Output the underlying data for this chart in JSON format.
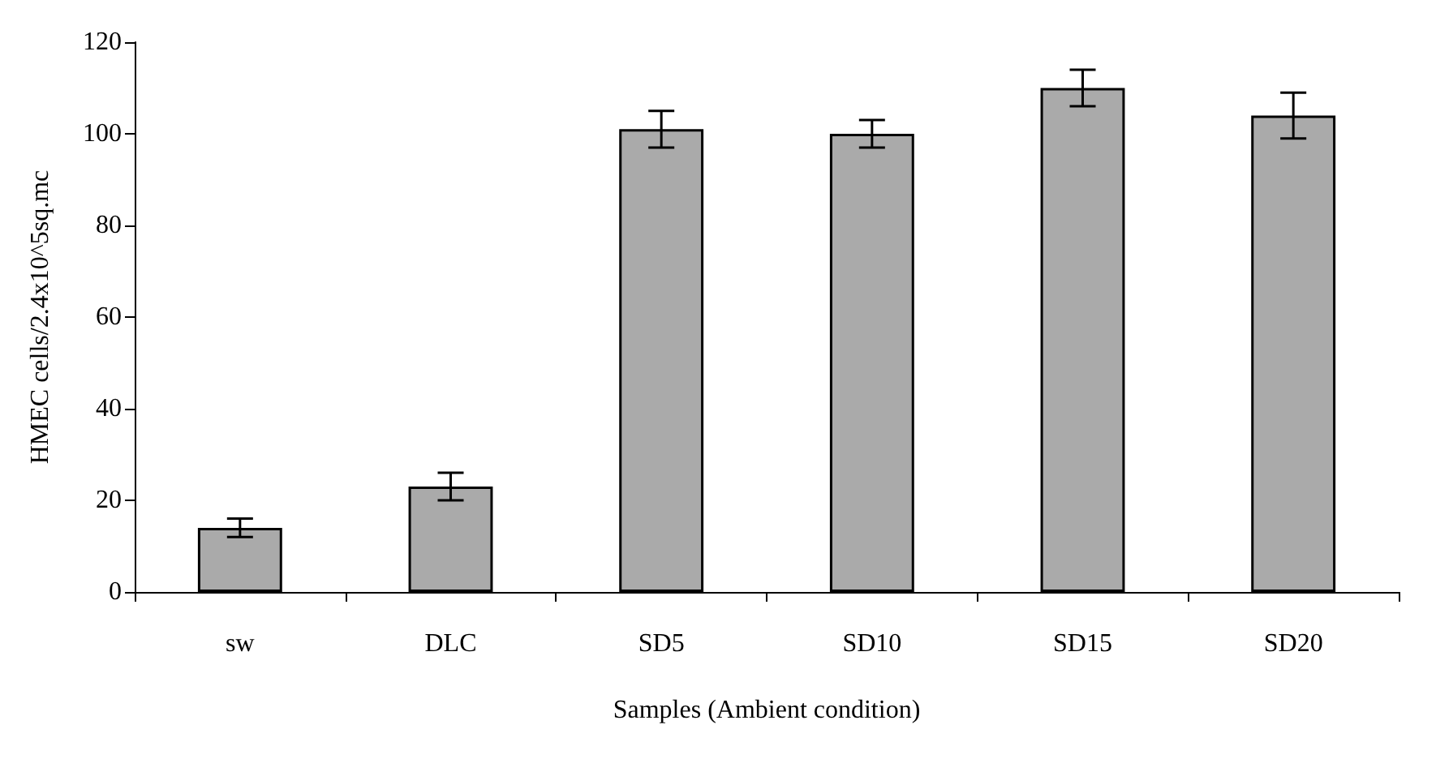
{
  "chart_data": {
    "type": "bar",
    "xlabel": "Samples (Ambient condition)",
    "ylabel": "HMEC cells/2.4x10^5sq.mc",
    "categories": [
      "sw",
      "DLC",
      "SD5",
      "SD10",
      "SD15",
      "SD20"
    ],
    "values": [
      14,
      23,
      101,
      100,
      110,
      104
    ],
    "errors": [
      2,
      3,
      4,
      3,
      4,
      5
    ],
    "color": "#aaaaaa",
    "ylim": [
      0,
      120
    ],
    "yticks": [
      0,
      20,
      40,
      60,
      80,
      100,
      120
    ],
    "grid": false
  }
}
